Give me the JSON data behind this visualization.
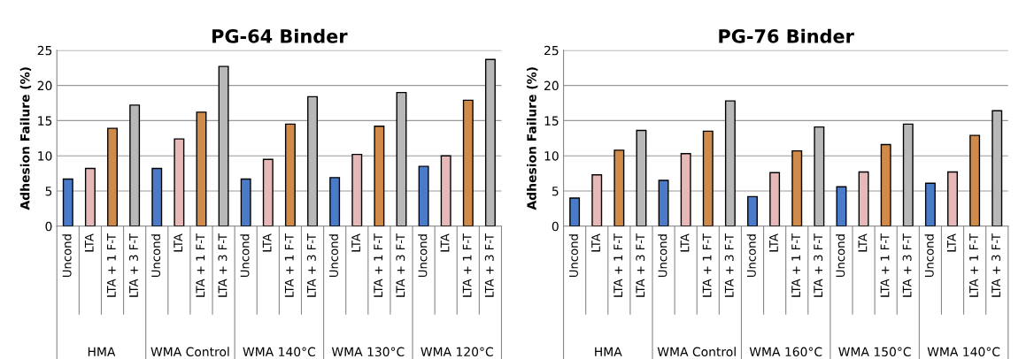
{
  "chart_data": [
    {
      "type": "bar",
      "title": "PG-64 Binder",
      "ylabel": "Adhesion Failure (%)",
      "categories": [
        "Uncond",
        "LTA",
        "LTA + 1 F-T",
        "LTA + 3 F-T",
        "Uncond",
        "LTA",
        "LTA + 1 F-T",
        "LTA + 3 F-T",
        "Uncond",
        "LTA",
        "LTA + 1 F-T",
        "LTA + 3 F-T",
        "Uncond",
        "LTA",
        "LTA + 1 F-T",
        "LTA + 3 F-T",
        "Uncond",
        "LTA",
        "LTA + 1 F-T",
        "LTA + 3 F-T"
      ],
      "values": [
        6.7,
        8.2,
        13.9,
        17.2,
        8.2,
        12.4,
        16.2,
        22.7,
        6.7,
        9.5,
        14.5,
        18.4,
        6.9,
        10.2,
        14.2,
        19.0,
        8.5,
        10.0,
        17.9,
        23.7
      ],
      "colors": [
        "#4a7bc8",
        "#e6b9b8",
        "#d08a4a",
        "#b8b8b8",
        "#4a7bc8",
        "#e6b9b8",
        "#d08a4a",
        "#b8b8b8",
        "#4a7bc8",
        "#e6b9b8",
        "#d08a4a",
        "#b8b8b8",
        "#4a7bc8",
        "#e6b9b8",
        "#d08a4a",
        "#b8b8b8",
        "#4a7bc8",
        "#e6b9b8",
        "#d08a4a",
        "#b8b8b8"
      ],
      "annotations": [
        "HMA",
        "WMA Control",
        "WMA 140°C",
        "WMA 130°C",
        "WMA 120°C"
      ],
      "ylim": [
        0,
        25
      ],
      "yticks": [
        0,
        5,
        10,
        15,
        20,
        25
      ],
      "grid": "y",
      "legend": false
    },
    {
      "type": "bar",
      "title": "PG-76 Binder",
      "ylabel": "Adhesion Failure (%)",
      "categories": [
        "Uncond",
        "LTA",
        "LTA + 1 F-T",
        "LTA + 3 F-T",
        "Uncond",
        "LTA",
        "LTA + 1 F-T",
        "LTA + 3 F-T",
        "Uncond",
        "LTA",
        "LTA + 1 F-T",
        "LTA + 3 F-T",
        "Uncond",
        "LTA",
        "LTA + 1 F-T",
        "LTA + 3 F-T",
        "Uncond",
        "LTA",
        "LTA + 1 F-T",
        "LTA + 3 F-T"
      ],
      "values": [
        4.0,
        7.3,
        10.8,
        13.6,
        6.5,
        10.3,
        13.5,
        17.8,
        4.2,
        7.6,
        10.7,
        14.1,
        5.6,
        7.7,
        11.6,
        14.5,
        6.1,
        7.7,
        12.9,
        16.4
      ],
      "colors": [
        "#4a7bc8",
        "#e6b9b8",
        "#d08a4a",
        "#b8b8b8",
        "#4a7bc8",
        "#e6b9b8",
        "#d08a4a",
        "#b8b8b8",
        "#4a7bc8",
        "#e6b9b8",
        "#d08a4a",
        "#b8b8b8",
        "#4a7bc8",
        "#e6b9b8",
        "#d08a4a",
        "#b8b8b8",
        "#4a7bc8",
        "#e6b9b8",
        "#d08a4a",
        "#b8b8b8"
      ],
      "annotations": [
        "HMA",
        "WMA Control",
        "WMA 160°C",
        "WMA 150°C",
        "WMA 140°C"
      ],
      "ylim": [
        0,
        25
      ],
      "yticks": [
        0,
        5,
        10,
        15,
        20,
        25
      ],
      "grid": "y",
      "legend": false
    }
  ]
}
